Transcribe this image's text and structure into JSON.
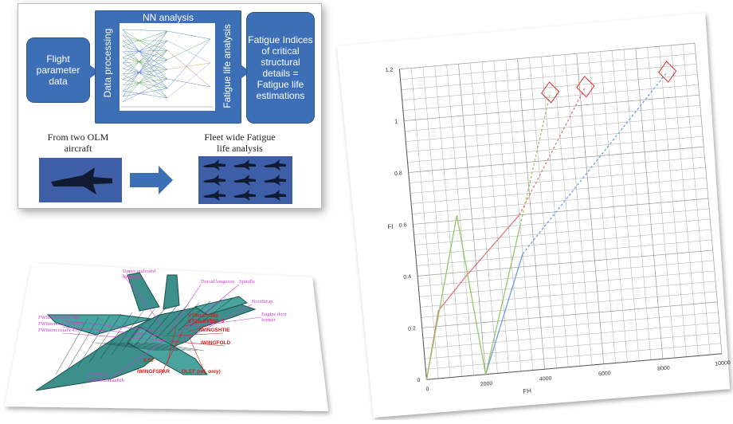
{
  "flow": {
    "source_label": "Flight parameter data",
    "nn_title": "NN analysis",
    "data_processing": "Data processing",
    "fatigue_life_analysis": "Fatigue life analysis",
    "result_label": "Fatigue Indices of critical structural details = Fatigue life estimations",
    "from_aircraft": "From two OLM aircraft",
    "fleet_label": "Fleet wide Fatigue life analysis",
    "colors": {
      "box": "#3d6fb6",
      "sky": "#3e5fa8"
    }
  },
  "cad_labels": [
    {
      "text": "Upper outboard longeron",
      "color": "#d03ad0"
    },
    {
      "text": "Dorsal longeron",
      "color": "#d03ad0"
    },
    {
      "text": "Spindle",
      "color": "#d03ad0"
    },
    {
      "text": "BootStrap",
      "color": "#d03ad0"
    },
    {
      "text": "Engine door former",
      "color": "#d03ad0"
    },
    {
      "text": "FWIntercostalY488",
      "color": "#d03ad0"
    },
    {
      "text": "FWIntercostalY470.5",
      "color": "#d03ad0"
    },
    {
      "text": "FWIntercostalY453",
      "color": "#d03ad0"
    },
    {
      "text": "VTStubY588",
      "color": "#e01a1a"
    },
    {
      "text": "VTStubY590_5",
      "color": "#e01a1a"
    },
    {
      "text": "IWINGSHTIE",
      "color": "#e01a1a"
    },
    {
      "text": "IWINGFOLD",
      "color": "#e01a1a"
    },
    {
      "text": "ILEF",
      "color": "#e01a1a"
    },
    {
      "text": "IWINGFSPAR",
      "color": "#e01a1a"
    },
    {
      "text": "OLEF (ref. only)",
      "color": "#e01a1a"
    },
    {
      "text": "FY508 & FWARChinaaRib",
      "color": "#d03ad0"
    }
  ],
  "chart_data": {
    "type": "line",
    "xlabel": "FH",
    "ylabel": "FI",
    "xlim": [
      0,
      10000
    ],
    "ylim": [
      0,
      1.2
    ],
    "x_ticks": [
      "0",
      "2000",
      "4000",
      "6000",
      "8000",
      "10000"
    ],
    "y_ticks": [
      "0",
      "0.2",
      "0.4",
      "0.6",
      "0.8",
      "1",
      "1.2"
    ],
    "grid": true,
    "series": [
      {
        "color": "#6a9fe0",
        "style": "solid",
        "points": [
          [
            2000,
            0
          ],
          [
            3600,
            0.45
          ]
        ]
      },
      {
        "color": "#6a9fe0",
        "style": "dashed",
        "points": [
          [
            3600,
            0.45
          ],
          [
            9000,
            1.1
          ]
        ]
      },
      {
        "color": "#e07878",
        "style": "solid",
        "points": [
          [
            0,
            0
          ],
          [
            600,
            0.26
          ],
          [
            1600,
            0.38
          ],
          [
            3600,
            0.6
          ]
        ]
      },
      {
        "color": "#e07878",
        "style": "dashed",
        "points": [
          [
            3600,
            0.6
          ],
          [
            6200,
            1.07
          ]
        ]
      },
      {
        "color": "#9cc36b",
        "style": "solid",
        "points": [
          [
            0,
            0
          ],
          [
            1500,
            0.62
          ],
          [
            2000,
            0
          ],
          [
            3600,
            0.56
          ]
        ]
      },
      {
        "color": "#9cc36b",
        "style": "dashed",
        "points": [
          [
            3600,
            0.56
          ],
          [
            5000,
            1.06
          ]
        ]
      }
    ],
    "markers": [
      {
        "x": 5000,
        "y": 1.06,
        "color": "#e03030"
      },
      {
        "x": 6200,
        "y": 1.07,
        "color": "#e03030"
      },
      {
        "x": 9000,
        "y": 1.1,
        "color": "#e03030"
      }
    ]
  }
}
